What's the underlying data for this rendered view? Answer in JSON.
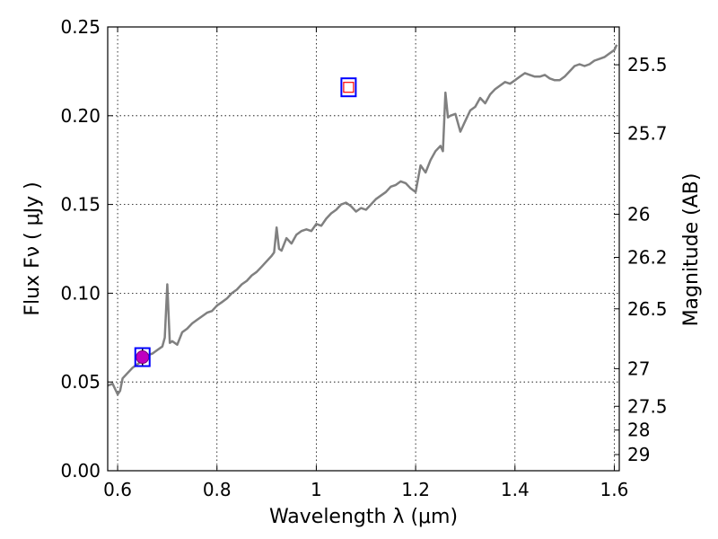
{
  "chart_data": {
    "type": "line",
    "title": "",
    "xlabel": "Wavelength  λ (μm)",
    "ylabel": "Flux  Fν  ( μJy )",
    "y2label": "Magnitude (AB)",
    "xlim": [
      0.58,
      1.61
    ],
    "ylim": [
      0.0,
      0.25
    ],
    "grid": true,
    "xticks": [
      {
        "value": 0.6,
        "label": "0.6"
      },
      {
        "value": 0.8,
        "label": "0.8"
      },
      {
        "value": 1.0,
        "label": "1"
      },
      {
        "value": 1.2,
        "label": "1.2"
      },
      {
        "value": 1.4,
        "label": "1.4"
      },
      {
        "value": 1.6,
        "label": "1.6"
      }
    ],
    "yticks": [
      {
        "value": 0.0,
        "label": "0.00"
      },
      {
        "value": 0.05,
        "label": "0.05"
      },
      {
        "value": 0.1,
        "label": "0.10"
      },
      {
        "value": 0.15,
        "label": "0.15"
      },
      {
        "value": 0.2,
        "label": "0.20"
      },
      {
        "value": 0.25,
        "label": "0.25"
      }
    ],
    "y2ticks": [
      {
        "flux": 0.2287,
        "label": "25.5"
      },
      {
        "flux": 0.1901,
        "label": "25.7"
      },
      {
        "flux": 0.1445,
        "label": "26"
      },
      {
        "flux": 0.1202,
        "label": "26.2"
      },
      {
        "flux": 0.0912,
        "label": "26.5"
      },
      {
        "flux": 0.0575,
        "label": "27"
      },
      {
        "flux": 0.0363,
        "label": "27.5"
      },
      {
        "flux": 0.0229,
        "label": "28"
      },
      {
        "flux": 0.0091,
        "label": "29"
      }
    ],
    "series": [
      {
        "type": "line",
        "color": "#808080",
        "x": [
          0.58,
          0.59,
          0.6,
          0.605,
          0.61,
          0.62,
          0.63,
          0.64,
          0.65,
          0.66,
          0.67,
          0.68,
          0.69,
          0.695,
          0.7,
          0.705,
          0.71,
          0.72,
          0.73,
          0.74,
          0.75,
          0.76,
          0.77,
          0.78,
          0.79,
          0.8,
          0.81,
          0.82,
          0.83,
          0.84,
          0.85,
          0.86,
          0.87,
          0.88,
          0.89,
          0.9,
          0.91,
          0.915,
          0.92,
          0.925,
          0.93,
          0.94,
          0.95,
          0.96,
          0.97,
          0.98,
          0.99,
          1.0,
          1.01,
          1.02,
          1.03,
          1.04,
          1.05,
          1.06,
          1.07,
          1.08,
          1.09,
          1.1,
          1.11,
          1.12,
          1.13,
          1.14,
          1.15,
          1.16,
          1.17,
          1.18,
          1.19,
          1.2,
          1.21,
          1.22,
          1.23,
          1.24,
          1.25,
          1.255,
          1.26,
          1.265,
          1.27,
          1.28,
          1.29,
          1.3,
          1.31,
          1.32,
          1.33,
          1.34,
          1.35,
          1.36,
          1.37,
          1.38,
          1.39,
          1.4,
          1.41,
          1.42,
          1.43,
          1.44,
          1.45,
          1.46,
          1.47,
          1.48,
          1.49,
          1.5,
          1.51,
          1.52,
          1.53,
          1.54,
          1.55,
          1.56,
          1.57,
          1.58,
          1.59,
          1.6,
          1.605
        ],
        "y": [
          0.048,
          0.049,
          0.043,
          0.045,
          0.052,
          0.055,
          0.058,
          0.06,
          0.062,
          0.065,
          0.066,
          0.068,
          0.07,
          0.075,
          0.105,
          0.072,
          0.073,
          0.071,
          0.078,
          0.08,
          0.083,
          0.085,
          0.087,
          0.089,
          0.09,
          0.093,
          0.095,
          0.097,
          0.1,
          0.102,
          0.105,
          0.107,
          0.11,
          0.112,
          0.115,
          0.118,
          0.121,
          0.123,
          0.137,
          0.125,
          0.124,
          0.131,
          0.128,
          0.133,
          0.135,
          0.136,
          0.135,
          0.139,
          0.138,
          0.142,
          0.145,
          0.147,
          0.15,
          0.151,
          0.149,
          0.146,
          0.148,
          0.147,
          0.15,
          0.153,
          0.155,
          0.157,
          0.16,
          0.161,
          0.163,
          0.162,
          0.159,
          0.157,
          0.172,
          0.168,
          0.175,
          0.18,
          0.183,
          0.18,
          0.213,
          0.199,
          0.2,
          0.201,
          0.191,
          0.197,
          0.203,
          0.205,
          0.21,
          0.207,
          0.212,
          0.215,
          0.217,
          0.219,
          0.218,
          0.22,
          0.222,
          0.224,
          0.223,
          0.222,
          0.222,
          0.223,
          0.221,
          0.22,
          0.22,
          0.222,
          0.225,
          0.228,
          0.229,
          0.228,
          0.229,
          0.231,
          0.232,
          0.233,
          0.235,
          0.237,
          0.24
        ]
      },
      {
        "type": "observed-point",
        "color": "#c000c0",
        "x": [
          0.65
        ],
        "y": [
          0.064
        ],
        "yerr": [
          0.005
        ]
      },
      {
        "type": "model-square",
        "color": "#0000ff",
        "x": [
          0.65,
          1.065
        ],
        "y": [
          0.064,
          0.216
        ]
      },
      {
        "type": "small-square",
        "color": "#ff0000",
        "x": [
          1.065
        ],
        "y": [
          0.216
        ]
      }
    ]
  }
}
